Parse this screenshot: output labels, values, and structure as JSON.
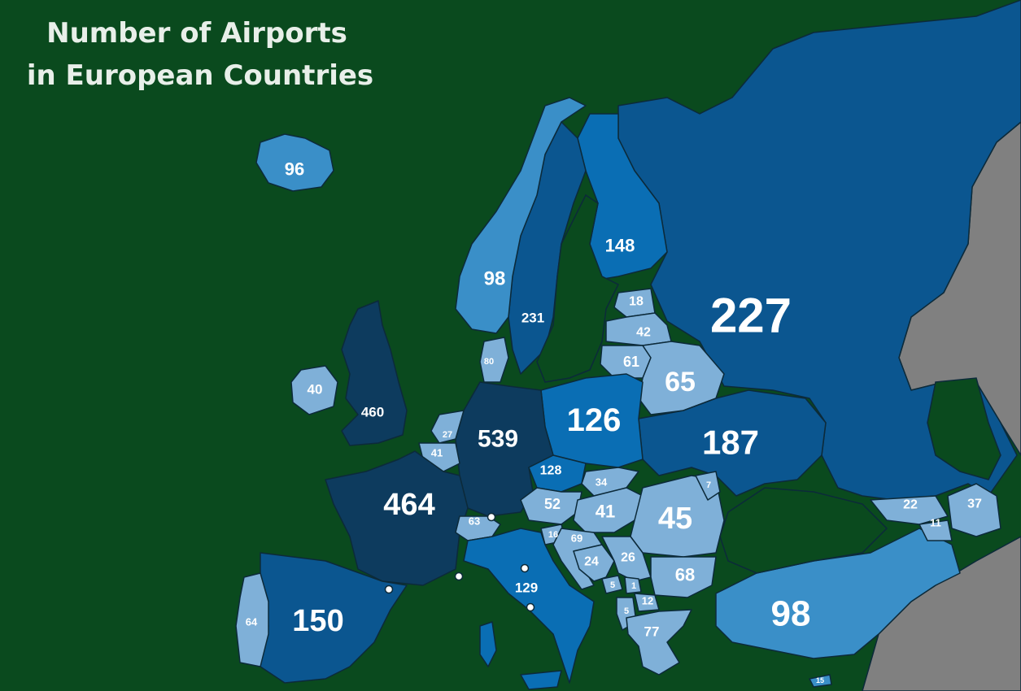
{
  "title_lines": [
    "Number of Airports",
    "in European Countries"
  ],
  "colors": {
    "sea": "#0a4a1e",
    "non_europe": "#808080",
    "very_high": "#0d3b5e",
    "high": "#0b5690",
    "medium": "#0a6eb4",
    "low": "#3a8fc8",
    "very_low": "#7fb0d8"
  },
  "countries": [
    {
      "name": "Iceland",
      "value": "96"
    },
    {
      "name": "Norway",
      "value": "98"
    },
    {
      "name": "Sweden",
      "value": "231"
    },
    {
      "name": "Finland",
      "value": "148"
    },
    {
      "name": "Russia",
      "value": "227"
    },
    {
      "name": "Estonia",
      "value": "18"
    },
    {
      "name": "Latvia",
      "value": "42"
    },
    {
      "name": "Lithuania",
      "value": "61"
    },
    {
      "name": "Belarus",
      "value": "65"
    },
    {
      "name": "Ireland",
      "value": "40"
    },
    {
      "name": "United Kingdom",
      "value": "460"
    },
    {
      "name": "Denmark",
      "value": "80"
    },
    {
      "name": "Netherlands",
      "value": "27"
    },
    {
      "name": "Belgium",
      "value": "41"
    },
    {
      "name": "Germany",
      "value": "539"
    },
    {
      "name": "Poland",
      "value": "126"
    },
    {
      "name": "Ukraine",
      "value": "187"
    },
    {
      "name": "France",
      "value": "464"
    },
    {
      "name": "Czechia",
      "value": "128"
    },
    {
      "name": "Slovakia",
      "value": "34"
    },
    {
      "name": "Moldova",
      "value": "7"
    },
    {
      "name": "Austria",
      "value": "52"
    },
    {
      "name": "Hungary",
      "value": "41"
    },
    {
      "name": "Romania",
      "value": "45"
    },
    {
      "name": "Switzerland",
      "value": "63"
    },
    {
      "name": "Slovenia",
      "value": "16"
    },
    {
      "name": "Croatia",
      "value": "69"
    },
    {
      "name": "Bosnia",
      "value": "24"
    },
    {
      "name": "Serbia",
      "value": "26"
    },
    {
      "name": "Bulgaria",
      "value": "68"
    },
    {
      "name": "Montenegro",
      "value": "5"
    },
    {
      "name": "Kosovo",
      "value": "1"
    },
    {
      "name": "North Macedonia",
      "value": "12"
    },
    {
      "name": "Albania",
      "value": "5"
    },
    {
      "name": "Greece",
      "value": "77"
    },
    {
      "name": "Italy",
      "value": "129"
    },
    {
      "name": "Spain",
      "value": "150"
    },
    {
      "name": "Portugal",
      "value": "64"
    },
    {
      "name": "Turkey",
      "value": "98"
    },
    {
      "name": "Georgia",
      "value": "22"
    },
    {
      "name": "Azerbaijan",
      "value": "37"
    },
    {
      "name": "Armenia",
      "value": "11"
    },
    {
      "name": "Cyprus",
      "value": "15"
    }
  ]
}
